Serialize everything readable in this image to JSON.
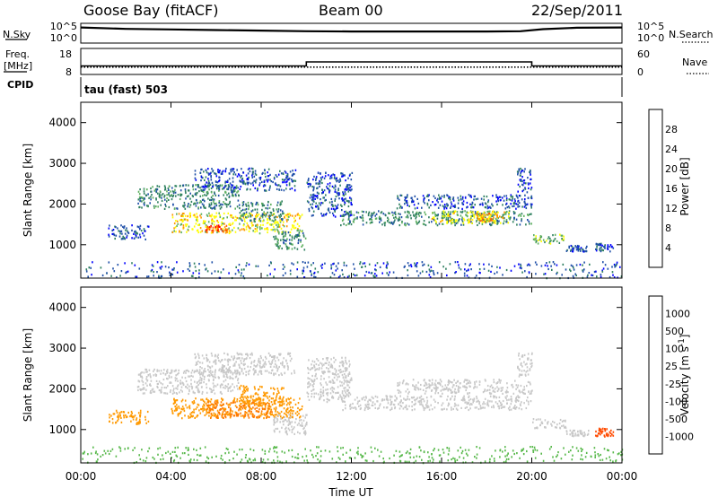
{
  "header": {
    "station": "Goose Bay (fitACF)",
    "beam": "Beam 00",
    "date": "22/Sep/2011"
  },
  "aux_labels": {
    "nsky": "N.Sky",
    "nsearch": "N.Search",
    "freq_line1": "Freq.",
    "freq_line2": "[MHz]",
    "nave": "Nave",
    "cpid": "CPID",
    "cpid_value": "tau (fast) 503"
  },
  "chart_data": [
    {
      "type": "line",
      "id": "noise",
      "yticks_left": [
        "10^5",
        "10^0"
      ],
      "yticks_right": [
        "10^5",
        "10^0"
      ],
      "series": [
        {
          "name": "N.Sky",
          "x": [
            "00:00",
            "02:00",
            "04:00",
            "06:00",
            "08:00",
            "10:00",
            "12:00",
            "14:00",
            "16:00",
            "18:00",
            "19:30",
            "20:30",
            "22:00",
            "24:00"
          ],
          "values": [
            4.5,
            4.0,
            3.8,
            3.6,
            3.4,
            3.2,
            3.1,
            3.1,
            3.1,
            3.1,
            3.2,
            3.9,
            4.4,
            4.5
          ]
        }
      ]
    },
    {
      "type": "line",
      "id": "frequency",
      "yticks_left": [
        "18",
        "8"
      ],
      "yticks_right": [
        "60",
        "0"
      ],
      "series": [
        {
          "name": "Freq.",
          "x": [
            "00:00",
            "10:00",
            "10:00",
            "20:00",
            "20:00",
            "24:00"
          ],
          "values": [
            10.7,
            10.7,
            12.6,
            12.6,
            10.7,
            10.7
          ]
        },
        {
          "name": "Nave",
          "x": [
            "00:00",
            "24:00"
          ],
          "values": [
            13,
            13
          ]
        }
      ]
    },
    {
      "type": "heatmap",
      "id": "power",
      "ylabel": "Slant Range [km]",
      "yticks": [
        "1000",
        "2000",
        "3000",
        "4000"
      ],
      "ylim": [
        180,
        4500
      ],
      "colorbar": {
        "label": "Power [dB]",
        "ticks": [
          "4",
          "8",
          "12",
          "16",
          "20",
          "24",
          "28"
        ],
        "colors": [
          "#0000ff",
          "#1f4fa8",
          "#2f8060",
          "#5fb060",
          "#ffff00",
          "#ff9900",
          "#ff5a00",
          "#ff0000"
        ]
      },
      "regions": [
        {
          "t": [
            1.2,
            3.0
          ],
          "range": [
            1150,
            1500
          ],
          "level": 1
        },
        {
          "t": [
            2.5,
            7.0
          ],
          "range": [
            1900,
            2500
          ],
          "level": 2
        },
        {
          "t": [
            5.0,
            9.5
          ],
          "range": [
            2350,
            2900
          ],
          "level": 1
        },
        {
          "t": [
            4.0,
            9.8
          ],
          "range": [
            1300,
            1800
          ],
          "level": 4
        },
        {
          "t": [
            5.5,
            6.5
          ],
          "range": [
            1300,
            1500
          ],
          "level": 6
        },
        {
          "t": [
            7.0,
            9.0
          ],
          "range": [
            1600,
            2100
          ],
          "level": 2
        },
        {
          "t": [
            8.5,
            10.0
          ],
          "range": [
            900,
            1400
          ],
          "level": 2
        },
        {
          "t": [
            10.0,
            12.0
          ],
          "range": [
            1700,
            2800
          ],
          "level": 1
        },
        {
          "t": [
            11.5,
            20.0
          ],
          "range": [
            1500,
            1850
          ],
          "level": 2
        },
        {
          "t": [
            14.0,
            20.0
          ],
          "range": [
            1900,
            2250
          ],
          "level": 1
        },
        {
          "t": [
            15.5,
            19.0
          ],
          "range": [
            1550,
            1850
          ],
          "level": 4
        },
        {
          "t": [
            17.5,
            18.5
          ],
          "range": [
            1600,
            1800
          ],
          "level": 5
        },
        {
          "t": [
            19.3,
            20.0
          ],
          "range": [
            2300,
            2900
          ],
          "level": 1
        },
        {
          "t": [
            20.0,
            21.5
          ],
          "range": [
            1050,
            1300
          ],
          "level": 3
        },
        {
          "t": [
            21.5,
            22.5
          ],
          "range": [
            850,
            1000
          ],
          "level": 1
        },
        {
          "t": [
            22.8,
            23.6
          ],
          "range": [
            850,
            1050
          ],
          "level": 1
        },
        {
          "t": [
            0.0,
            24.0
          ],
          "range": [
            200,
            600
          ],
          "level": 1
        }
      ]
    },
    {
      "type": "heatmap",
      "id": "velocity",
      "xlabel": "Time UT",
      "ylabel": "Slant Range [km]",
      "xticks": [
        "00:00",
        "04:00",
        "08:00",
        "12:00",
        "16:00",
        "20:00",
        "00:00"
      ],
      "yticks": [
        "1000",
        "2000",
        "3000",
        "4000"
      ],
      "ylim": [
        180,
        4500
      ],
      "colorbar": {
        "label": "Velocity [m s^-1]",
        "ticks": [
          "1000",
          "500",
          "100",
          "25",
          "-25",
          "-100",
          "-500",
          "-1000"
        ],
        "colors": [
          "#0000ff",
          "#1f4fa8",
          "#2e7d5a",
          "#57b84a",
          "#c8c8c8",
          "#ff9900",
          "#ff7a00",
          "#ff4a00",
          "#ff0000"
        ]
      },
      "regions": [
        {
          "t": [
            1.2,
            3.0
          ],
          "range": [
            1150,
            1500
          ],
          "level": 5
        },
        {
          "t": [
            2.5,
            7.0
          ],
          "range": [
            1900,
            2500
          ],
          "level": 4
        },
        {
          "t": [
            5.0,
            9.5
          ],
          "range": [
            2350,
            2900
          ],
          "level": 4
        },
        {
          "t": [
            4.0,
            9.8
          ],
          "range": [
            1300,
            1800
          ],
          "level": 5
        },
        {
          "t": [
            5.5,
            8.5
          ],
          "range": [
            1300,
            1700
          ],
          "level": 6
        },
        {
          "t": [
            7.0,
            9.0
          ],
          "range": [
            1600,
            2100
          ],
          "level": 5
        },
        {
          "t": [
            8.5,
            10.0
          ],
          "range": [
            900,
            1400
          ],
          "level": 4
        },
        {
          "t": [
            10.0,
            12.0
          ],
          "range": [
            1700,
            2800
          ],
          "level": 4
        },
        {
          "t": [
            11.5,
            20.0
          ],
          "range": [
            1500,
            1850
          ],
          "level": 4
        },
        {
          "t": [
            14.0,
            20.0
          ],
          "range": [
            1900,
            2250
          ],
          "level": 4
        },
        {
          "t": [
            19.3,
            20.0
          ],
          "range": [
            2300,
            2900
          ],
          "level": 4
        },
        {
          "t": [
            20.0,
            21.5
          ],
          "range": [
            1050,
            1300
          ],
          "level": 4
        },
        {
          "t": [
            21.5,
            22.5
          ],
          "range": [
            850,
            1000
          ],
          "level": 4
        },
        {
          "t": [
            22.8,
            23.6
          ],
          "range": [
            850,
            1050
          ],
          "level": 7
        },
        {
          "t": [
            0.0,
            24.0
          ],
          "range": [
            200,
            600
          ],
          "level": 3
        }
      ]
    }
  ]
}
